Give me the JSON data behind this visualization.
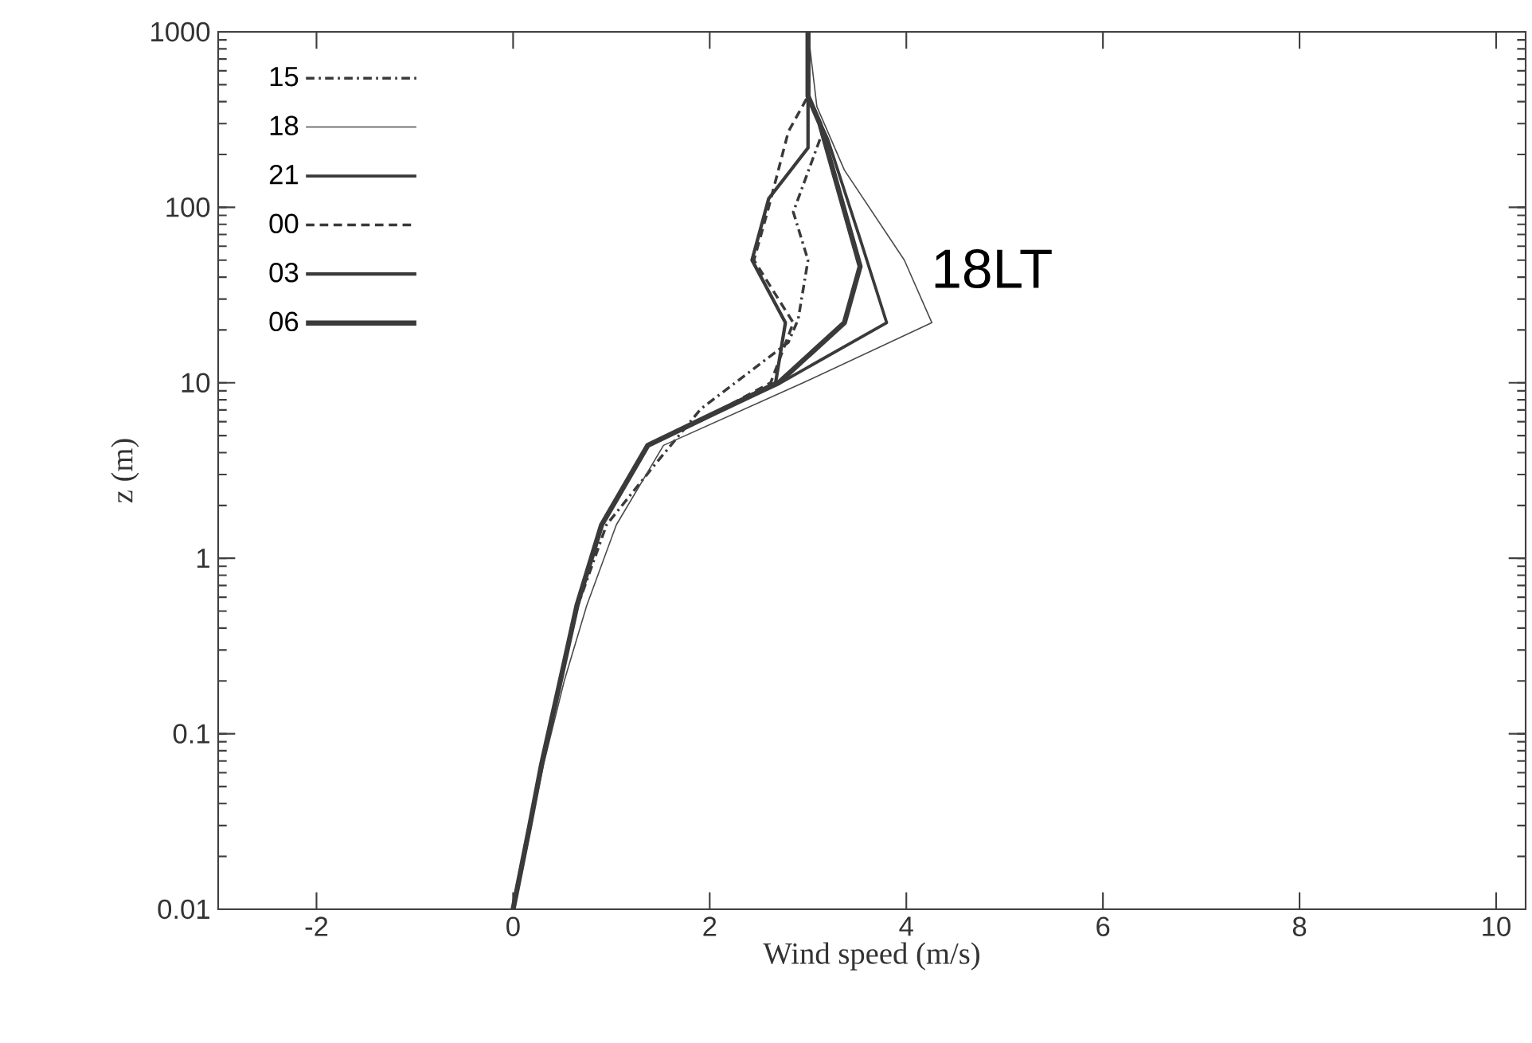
{
  "chart_data": {
    "type": "line",
    "xlabel": "Wind speed (m/s)",
    "ylabel": "z (m)",
    "log": "y",
    "legend": "top left",
    "grid": false,
    "xlim": [
      -3,
      10.3
    ],
    "xticks": [
      -2,
      0,
      2,
      4,
      6,
      8,
      10
    ],
    "ylim": [
      0.01,
      1000
    ],
    "yticks": [
      0.01,
      0.1,
      1,
      10,
      100,
      1000
    ],
    "annotations": [
      "18LT"
    ],
    "series": [
      {
        "name": "15",
        "color": "#3a3a3a",
        "line_style": "dashdot",
        "x": [
          0,
          0.17,
          0.29,
          0.48,
          0.66,
          0.95,
          1.42,
          1.91,
          2.8,
          2.9,
          3.0,
          2.85,
          3.15,
          3.0,
          3.0
        ],
        "values": [
          0.01,
          0.03,
          0.067,
          0.2,
          0.54,
          1.55,
          3.3,
          7.1,
          17,
          23,
          50,
          94,
          270,
          430,
          1000
        ]
      },
      {
        "name": "18",
        "color": "#4a4a4a",
        "line_style": "solid",
        "x": [
          0,
          0.18,
          0.31,
          0.52,
          0.75,
          1.05,
          1.53,
          2.95,
          4.26,
          3.98,
          3.37,
          3.09,
          3.0
        ],
        "values": [
          0.01,
          0.03,
          0.067,
          0.2,
          0.54,
          1.55,
          4.4,
          10,
          22,
          50,
          163,
          375,
          1000
        ]
      },
      {
        "name": "21",
        "color": "#3a3a3a",
        "line_style": "solid",
        "x": [
          0,
          0.17,
          0.29,
          0.48,
          0.65,
          0.9,
          1.37,
          2.02,
          2.72,
          3.8,
          3.53,
          3.2,
          3.0,
          3.0
        ],
        "values": [
          0.01,
          0.03,
          0.067,
          0.2,
          0.54,
          1.55,
          4.4,
          6.6,
          10,
          22,
          66,
          245,
          430,
          1000
        ]
      },
      {
        "name": "00",
        "color": "#3a3a3a",
        "line_style": "dashed",
        "x": [
          0,
          0.17,
          0.29,
          0.48,
          0.65,
          0.9,
          1.37,
          2.02,
          2.62,
          2.85,
          2.45,
          2.6,
          2.8,
          3.0,
          3.0
        ],
        "values": [
          0.01,
          0.03,
          0.067,
          0.2,
          0.54,
          1.55,
          4.4,
          6.6,
          10,
          22,
          50,
          100,
          270,
          430,
          1000
        ]
      },
      {
        "name": "03",
        "color": "#3a3a3a",
        "line_style": "solid",
        "x": [
          0,
          0.17,
          0.29,
          0.48,
          0.65,
          0.9,
          1.37,
          2.02,
          2.67,
          2.77,
          2.43,
          2.6,
          3.0,
          3.0
        ],
        "values": [
          0.01,
          0.03,
          0.067,
          0.2,
          0.54,
          1.55,
          4.4,
          6.6,
          10,
          22,
          50,
          112,
          218,
          1000
        ]
      },
      {
        "name": "06",
        "color": "#3a3a3a",
        "line_style": "solid",
        "x": [
          0,
          0.17,
          0.29,
          0.48,
          0.65,
          0.9,
          1.37,
          2.02,
          2.7,
          3.37,
          3.53,
          3.12,
          3.0,
          3.0
        ],
        "values": [
          0.01,
          0.03,
          0.067,
          0.2,
          0.54,
          1.55,
          4.4,
          6.6,
          10,
          22,
          46,
          300,
          430,
          1000
        ]
      }
    ]
  }
}
